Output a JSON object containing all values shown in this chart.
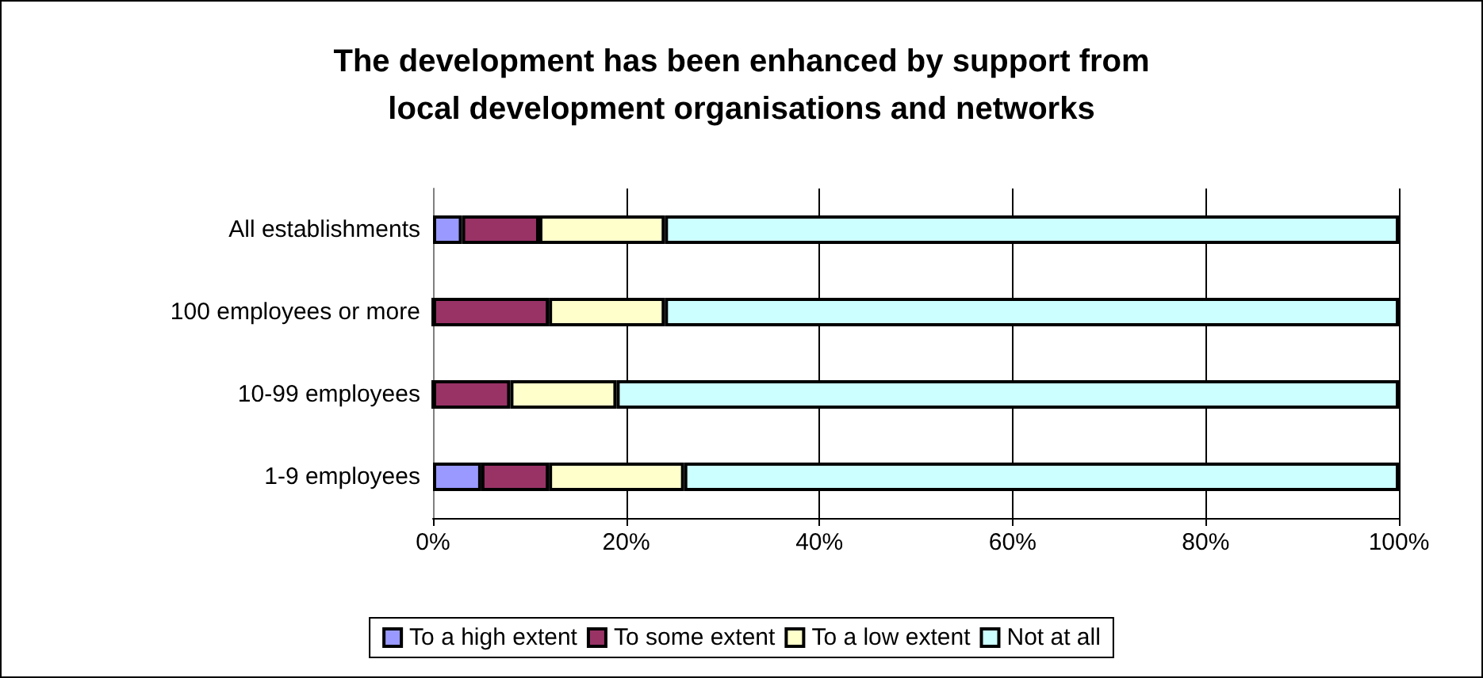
{
  "chart_data": {
    "type": "bar",
    "orientation": "horizontal",
    "stacked": true,
    "title": "The development has been enhanced by support from\nlocal development organisations and networks",
    "categories": [
      "All establishments",
      "100 employees or more",
      "10-99 employees",
      "1-9 employees"
    ],
    "series": [
      {
        "name": "To a high extent",
        "color": "#9999ff",
        "values": [
          3,
          0,
          0,
          5
        ]
      },
      {
        "name": "To some extent",
        "color": "#993366",
        "values": [
          8,
          12,
          8,
          7
        ]
      },
      {
        "name": "To a low extent",
        "color": "#ffffcc",
        "values": [
          13,
          12,
          11,
          14
        ]
      },
      {
        "name": "Not at all",
        "color": "#ccffff",
        "values": [
          76,
          76,
          81,
          74
        ]
      }
    ],
    "xlim": [
      0,
      100
    ],
    "xticks": [
      {
        "value": 0,
        "label": "0%"
      },
      {
        "value": 20,
        "label": "20%"
      },
      {
        "value": 40,
        "label": "40%"
      },
      {
        "value": 60,
        "label": "60%"
      },
      {
        "value": 80,
        "label": "80%"
      },
      {
        "value": 100,
        "label": "100%"
      }
    ],
    "grid": "x",
    "legend": "bottom"
  }
}
